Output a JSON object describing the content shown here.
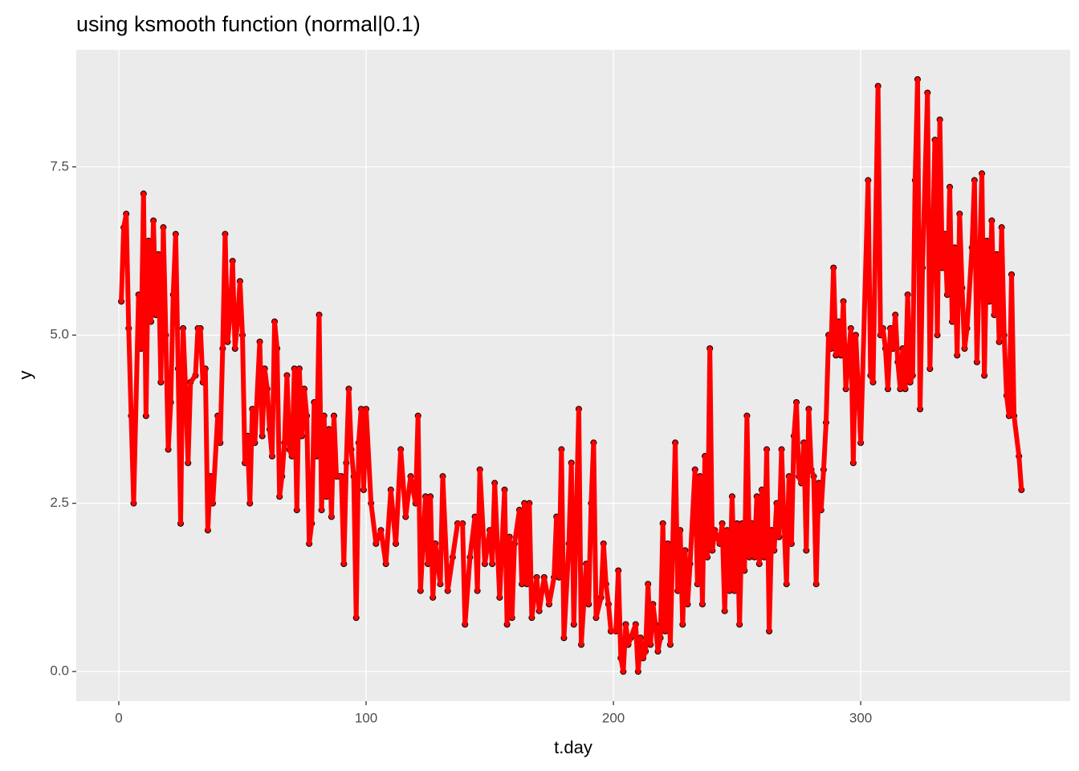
{
  "chart_data": {
    "type": "line",
    "title": "using ksmooth function (normal|0.1)",
    "x_label": "t.day",
    "y_label": "y",
    "x": [
      1,
      2,
      3,
      4,
      5,
      6,
      8,
      9,
      10,
      11,
      12,
      13,
      14,
      15,
      16,
      17,
      18,
      19,
      20,
      21,
      22,
      23,
      24,
      25,
      26,
      27,
      28,
      29,
      31,
      32,
      33,
      34,
      35,
      36,
      37,
      38,
      40,
      41,
      42,
      43,
      44,
      45,
      46,
      47,
      48,
      49,
      50,
      51,
      52,
      53,
      54,
      55,
      57,
      58,
      59,
      60,
      61,
      62,
      63,
      64,
      65,
      66,
      67,
      68,
      69,
      70,
      71,
      72,
      73,
      74,
      75,
      76,
      77,
      78,
      79,
      80,
      81,
      82,
      83,
      84,
      85,
      86,
      87,
      88,
      89,
      90,
      91,
      92,
      93,
      94,
      95,
      96,
      97,
      98,
      99,
      100,
      102,
      104,
      106,
      108,
      110,
      112,
      114,
      116,
      118,
      120,
      121,
      122,
      124,
      125,
      126,
      127,
      128,
      130,
      131,
      133,
      135,
      137,
      139,
      140,
      142,
      144,
      145,
      146,
      148,
      150,
      151,
      152,
      154,
      156,
      157,
      158,
      159,
      160,
      162,
      163,
      164,
      165,
      166,
      167,
      169,
      170,
      172,
      174,
      176,
      177,
      178,
      179,
      180,
      182,
      183,
      184,
      186,
      187,
      189,
      190,
      191,
      192,
      193,
      195,
      196,
      197,
      198,
      199,
      201,
      202,
      203,
      204,
      205,
      206,
      207,
      209,
      210,
      211,
      212,
      213,
      214,
      215,
      216,
      217,
      218,
      219,
      220,
      221,
      222,
      223,
      225,
      226,
      227,
      228,
      229,
      230,
      231,
      233,
      234,
      235,
      236,
      237,
      238,
      239,
      240,
      241,
      243,
      244,
      245,
      246,
      247,
      248,
      249,
      250,
      251,
      252,
      253,
      254,
      255,
      256,
      257,
      258,
      259,
      260,
      261,
      262,
      263,
      264,
      265,
      266,
      267,
      268,
      269,
      270,
      271,
      272,
      273,
      274,
      275,
      276,
      277,
      278,
      279,
      280,
      281,
      282,
      283,
      284,
      285,
      286,
      287,
      288,
      289,
      290,
      291,
      292,
      293,
      294,
      296,
      297,
      298,
      300,
      303,
      304,
      305,
      307,
      308,
      309,
      310,
      311,
      312,
      313,
      314,
      315,
      316,
      317,
      318,
      319,
      320,
      321,
      322,
      323,
      324,
      325,
      327,
      328,
      330,
      331,
      332,
      333,
      334,
      335,
      336,
      337,
      338,
      339,
      340,
      341,
      342,
      343,
      345,
      346,
      347,
      349,
      350,
      351,
      352,
      353,
      354,
      355,
      356,
      357,
      358,
      359,
      360,
      361,
      362,
      364,
      365
    ],
    "values": [
      5.5,
      6.6,
      6.8,
      5.1,
      3.8,
      2.5,
      5.6,
      4.8,
      7.1,
      3.8,
      6.4,
      5.2,
      6.7,
      5.3,
      6.2,
      4.3,
      6.6,
      5.0,
      3.3,
      4.0,
      5.6,
      6.5,
      4.5,
      2.2,
      5.1,
      4.2,
      3.1,
      4.3,
      4.4,
      5.1,
      5.1,
      4.3,
      4.5,
      2.1,
      2.9,
      2.5,
      3.8,
      3.4,
      4.8,
      6.5,
      4.9,
      5.3,
      6.1,
      4.8,
      5.2,
      5.8,
      5.0,
      3.1,
      3.5,
      2.5,
      3.9,
      3.4,
      4.9,
      3.5,
      4.5,
      4.2,
      3.6,
      3.2,
      5.2,
      4.8,
      2.6,
      2.9,
      3.4,
      4.4,
      3.3,
      3.2,
      4.5,
      2.4,
      4.5,
      3.5,
      4.2,
      3.8,
      1.9,
      2.2,
      4.0,
      3.2,
      5.3,
      2.4,
      3.8,
      2.6,
      3.6,
      2.3,
      3.8,
      2.9,
      2.9,
      2.9,
      1.6,
      3.1,
      4.2,
      3.3,
      2.9,
      0.8,
      3.4,
      3.9,
      2.7,
      3.9,
      2.5,
      1.9,
      2.1,
      1.6,
      2.7,
      1.9,
      3.3,
      2.3,
      2.9,
      2.5,
      3.8,
      1.2,
      2.6,
      1.6,
      2.6,
      1.1,
      1.9,
      1.3,
      2.9,
      1.2,
      1.7,
      2.2,
      2.2,
      0.7,
      1.7,
      2.3,
      1.2,
      3.0,
      1.6,
      2.1,
      1.6,
      2.8,
      1.1,
      2.7,
      0.7,
      2.0,
      0.8,
      1.9,
      2.4,
      1.3,
      2.5,
      1.3,
      2.5,
      0.8,
      1.4,
      0.9,
      1.4,
      1.0,
      1.4,
      2.3,
      1.4,
      3.3,
      0.5,
      1.9,
      3.1,
      0.7,
      3.9,
      0.4,
      1.6,
      1.0,
      2.5,
      3.4,
      0.8,
      1.1,
      1.9,
      1.3,
      1.0,
      0.6,
      0.6,
      1.5,
      0.2,
      0.0,
      0.7,
      0.4,
      0.5,
      0.7,
      0.0,
      0.5,
      0.2,
      0.3,
      1.3,
      0.4,
      1.0,
      0.7,
      0.3,
      0.5,
      2.2,
      0.6,
      1.9,
      0.4,
      3.4,
      1.2,
      2.1,
      0.7,
      1.8,
      1.0,
      1.6,
      3.0,
      1.3,
      2.9,
      1.0,
      3.2,
      1.7,
      4.8,
      1.8,
      2.1,
      1.9,
      2.2,
      0.9,
      2.1,
      1.2,
      2.6,
      1.2,
      2.2,
      0.7,
      2.2,
      1.5,
      3.8,
      1.7,
      2.2,
      1.7,
      2.6,
      1.6,
      2.7,
      1.7,
      3.3,
      0.6,
      2.1,
      1.8,
      2.5,
      2.0,
      3.3,
      2.2,
      1.3,
      2.9,
      1.9,
      3.5,
      4.0,
      2.9,
      2.8,
      3.4,
      1.8,
      3.9,
      3.0,
      2.9,
      1.3,
      2.8,
      2.4,
      3.0,
      3.7,
      5.0,
      4.8,
      6.0,
      4.7,
      5.2,
      4.7,
      5.5,
      4.2,
      5.1,
      3.1,
      5.0,
      3.4,
      7.3,
      4.4,
      4.3,
      8.7,
      5.0,
      5.1,
      4.8,
      4.2,
      5.1,
      4.8,
      5.3,
      4.6,
      4.2,
      4.8,
      4.2,
      5.6,
      4.3,
      4.4,
      7.3,
      8.8,
      3.9,
      6.0,
      8.6,
      4.5,
      7.9,
      5.0,
      8.2,
      6.0,
      6.5,
      5.6,
      7.2,
      5.2,
      6.3,
      4.7,
      6.8,
      5.7,
      4.8,
      5.1,
      6.3,
      7.3,
      4.6,
      7.4,
      4.4,
      6.4,
      5.5,
      6.7,
      5.3,
      6.2,
      4.9,
      6.6,
      5.0,
      4.1,
      3.8,
      5.9,
      3.8,
      3.2,
      2.7
    ],
    "line_color": "#FF0000",
    "point_color": "#000000",
    "xlim": [
      -17.2,
      384.7
    ],
    "xticks": [
      0,
      100,
      200,
      300
    ],
    "ylim": [
      -0.44,
      9.24
    ],
    "yticks": [
      {
        "value": 0,
        "label": "0.0"
      },
      2.5,
      {
        "value": 5,
        "label": "5.0"
      },
      7.5
    ],
    "grid": true
  }
}
